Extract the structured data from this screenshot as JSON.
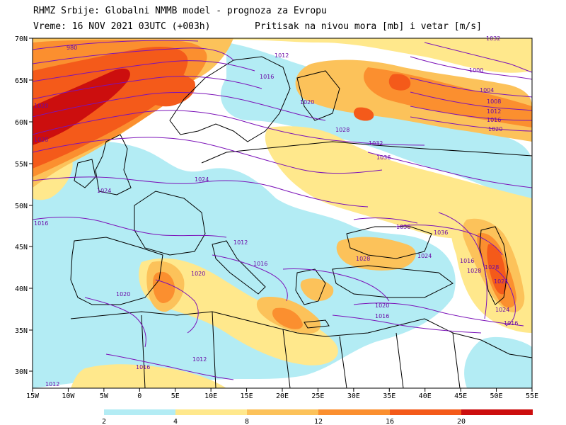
{
  "header": {
    "line1": "RHMZ Srbije: Globalni NMMB model - prognoza za Evropu",
    "line2_left": "Vreme: 16 NOV 2021 03UTC (+003h)",
    "line2_right": "Pritisak na nivou mora [mb] i vetar [m/s]"
  },
  "map": {
    "lon_labels": [
      "15W",
      "10W",
      "5W",
      "0",
      "5E",
      "10E",
      "15E",
      "20E",
      "25E",
      "30E",
      "35E",
      "40E",
      "45E",
      "50E",
      "55E"
    ],
    "lat_labels": [
      "70N",
      "65N",
      "60N",
      "55N",
      "50N",
      "45N",
      "40N",
      "35N",
      "30N"
    ],
    "isobar_labels": [
      "980",
      "1012",
      "1016",
      "1020",
      "1024",
      "1028",
      "1032",
      "1036",
      "1004",
      "1000",
      "1008",
      "1012",
      "1016",
      "1020",
      "1028",
      "1024",
      "1024",
      "1028",
      "1036",
      "1036",
      "1024",
      "1032",
      "1028",
      "1024",
      "1020",
      "1016",
      "1016",
      "1020",
      "1012",
      "1016",
      "1012",
      "1020",
      "1016",
      "1012",
      "1016",
      "1020",
      "1028",
      "1016"
    ],
    "colors": {
      "band_2_4": "#b3ecf4",
      "band_4_8": "#ffe88c",
      "band_8_12": "#fcc25a",
      "band_12_16": "#fb8f2f",
      "band_16_20": "#f45a1a",
      "band_20_plus": "#cc0e0e",
      "isobar": "#7b12b8",
      "land_border": "#000000"
    }
  },
  "colorbar": {
    "labels": [
      "2",
      "4",
      "8",
      "12",
      "16",
      "20"
    ]
  }
}
